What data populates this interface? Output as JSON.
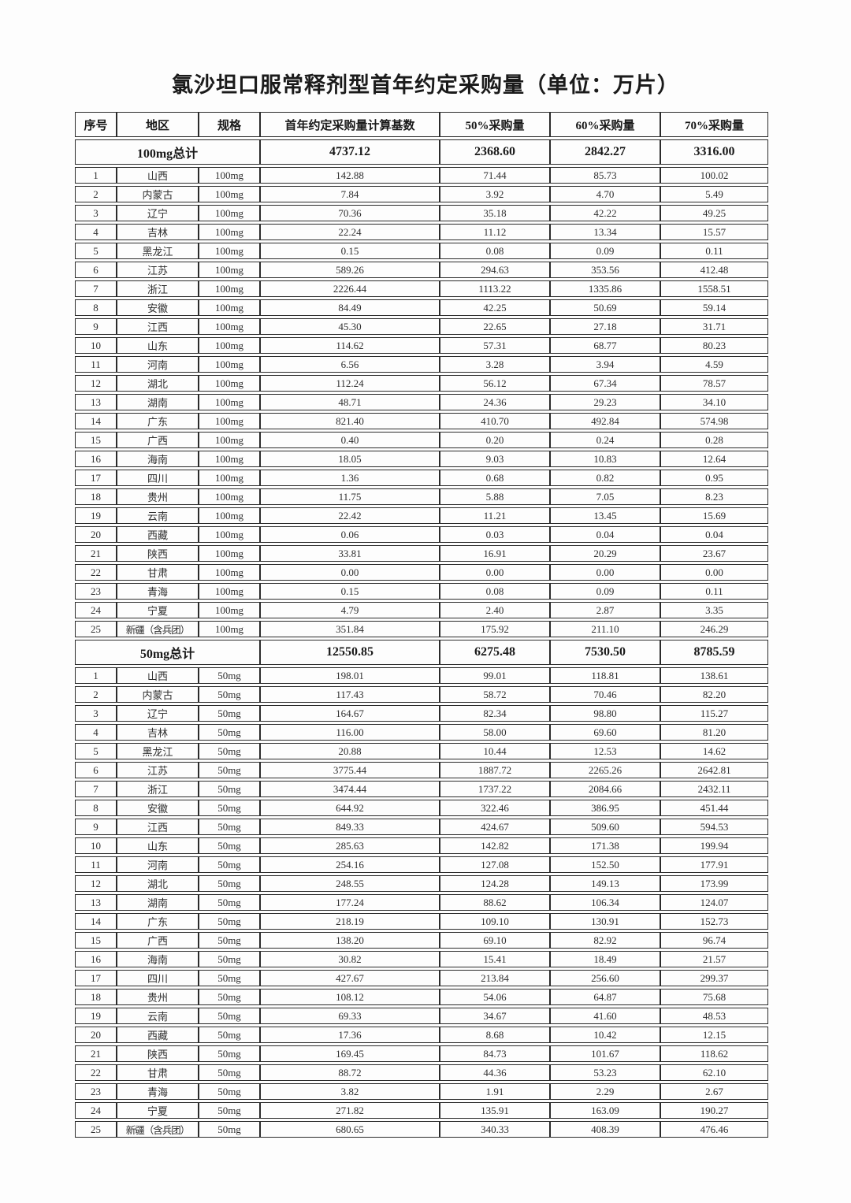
{
  "title": "氯沙坦口服常释剂型首年约定采购量（单位：万片）",
  "table": {
    "columns": [
      "序号",
      "地区",
      "规格",
      "首年约定采购量计算基数",
      "50%采购量",
      "60%采购量",
      "70%采购量"
    ],
    "sections": [
      {
        "summary_label": "100mg总计",
        "summary_values": [
          "4737.12",
          "2368.60",
          "2842.27",
          "3316.00"
        ],
        "rows": [
          [
            "1",
            "山西",
            "100mg",
            "142.88",
            "71.44",
            "85.73",
            "100.02"
          ],
          [
            "2",
            "内蒙古",
            "100mg",
            "7.84",
            "3.92",
            "4.70",
            "5.49"
          ],
          [
            "3",
            "辽宁",
            "100mg",
            "70.36",
            "35.18",
            "42.22",
            "49.25"
          ],
          [
            "4",
            "吉林",
            "100mg",
            "22.24",
            "11.12",
            "13.34",
            "15.57"
          ],
          [
            "5",
            "黑龙江",
            "100mg",
            "0.15",
            "0.08",
            "0.09",
            "0.11"
          ],
          [
            "6",
            "江苏",
            "100mg",
            "589.26",
            "294.63",
            "353.56",
            "412.48"
          ],
          [
            "7",
            "浙江",
            "100mg",
            "2226.44",
            "1113.22",
            "1335.86",
            "1558.51"
          ],
          [
            "8",
            "安徽",
            "100mg",
            "84.49",
            "42.25",
            "50.69",
            "59.14"
          ],
          [
            "9",
            "江西",
            "100mg",
            "45.30",
            "22.65",
            "27.18",
            "31.71"
          ],
          [
            "10",
            "山东",
            "100mg",
            "114.62",
            "57.31",
            "68.77",
            "80.23"
          ],
          [
            "11",
            "河南",
            "100mg",
            "6.56",
            "3.28",
            "3.94",
            "4.59"
          ],
          [
            "12",
            "湖北",
            "100mg",
            "112.24",
            "56.12",
            "67.34",
            "78.57"
          ],
          [
            "13",
            "湖南",
            "100mg",
            "48.71",
            "24.36",
            "29.23",
            "34.10"
          ],
          [
            "14",
            "广东",
            "100mg",
            "821.40",
            "410.70",
            "492.84",
            "574.98"
          ],
          [
            "15",
            "广西",
            "100mg",
            "0.40",
            "0.20",
            "0.24",
            "0.28"
          ],
          [
            "16",
            "海南",
            "100mg",
            "18.05",
            "9.03",
            "10.83",
            "12.64"
          ],
          [
            "17",
            "四川",
            "100mg",
            "1.36",
            "0.68",
            "0.82",
            "0.95"
          ],
          [
            "18",
            "贵州",
            "100mg",
            "11.75",
            "5.88",
            "7.05",
            "8.23"
          ],
          [
            "19",
            "云南",
            "100mg",
            "22.42",
            "11.21",
            "13.45",
            "15.69"
          ],
          [
            "20",
            "西藏",
            "100mg",
            "0.06",
            "0.03",
            "0.04",
            "0.04"
          ],
          [
            "21",
            "陕西",
            "100mg",
            "33.81",
            "16.91",
            "20.29",
            "23.67"
          ],
          [
            "22",
            "甘肃",
            "100mg",
            "0.00",
            "0.00",
            "0.00",
            "0.00"
          ],
          [
            "23",
            "青海",
            "100mg",
            "0.15",
            "0.08",
            "0.09",
            "0.11"
          ],
          [
            "24",
            "宁夏",
            "100mg",
            "4.79",
            "2.40",
            "2.87",
            "3.35"
          ],
          [
            "25",
            "新疆（含兵团）",
            "100mg",
            "351.84",
            "175.92",
            "211.10",
            "246.29"
          ]
        ]
      },
      {
        "summary_label": "50mg总计",
        "summary_values": [
          "12550.85",
          "6275.48",
          "7530.50",
          "8785.59"
        ],
        "rows": [
          [
            "1",
            "山西",
            "50mg",
            "198.01",
            "99.01",
            "118.81",
            "138.61"
          ],
          [
            "2",
            "内蒙古",
            "50mg",
            "117.43",
            "58.72",
            "70.46",
            "82.20"
          ],
          [
            "3",
            "辽宁",
            "50mg",
            "164.67",
            "82.34",
            "98.80",
            "115.27"
          ],
          [
            "4",
            "吉林",
            "50mg",
            "116.00",
            "58.00",
            "69.60",
            "81.20"
          ],
          [
            "5",
            "黑龙江",
            "50mg",
            "20.88",
            "10.44",
            "12.53",
            "14.62"
          ],
          [
            "6",
            "江苏",
            "50mg",
            "3775.44",
            "1887.72",
            "2265.26",
            "2642.81"
          ],
          [
            "7",
            "浙江",
            "50mg",
            "3474.44",
            "1737.22",
            "2084.66",
            "2432.11"
          ],
          [
            "8",
            "安徽",
            "50mg",
            "644.92",
            "322.46",
            "386.95",
            "451.44"
          ],
          [
            "9",
            "江西",
            "50mg",
            "849.33",
            "424.67",
            "509.60",
            "594.53"
          ],
          [
            "10",
            "山东",
            "50mg",
            "285.63",
            "142.82",
            "171.38",
            "199.94"
          ],
          [
            "11",
            "河南",
            "50mg",
            "254.16",
            "127.08",
            "152.50",
            "177.91"
          ],
          [
            "12",
            "湖北",
            "50mg",
            "248.55",
            "124.28",
            "149.13",
            "173.99"
          ],
          [
            "13",
            "湖南",
            "50mg",
            "177.24",
            "88.62",
            "106.34",
            "124.07"
          ],
          [
            "14",
            "广东",
            "50mg",
            "218.19",
            "109.10",
            "130.91",
            "152.73"
          ],
          [
            "15",
            "广西",
            "50mg",
            "138.20",
            "69.10",
            "82.92",
            "96.74"
          ],
          [
            "16",
            "海南",
            "50mg",
            "30.82",
            "15.41",
            "18.49",
            "21.57"
          ],
          [
            "17",
            "四川",
            "50mg",
            "427.67",
            "213.84",
            "256.60",
            "299.37"
          ],
          [
            "18",
            "贵州",
            "50mg",
            "108.12",
            "54.06",
            "64.87",
            "75.68"
          ],
          [
            "19",
            "云南",
            "50mg",
            "69.33",
            "34.67",
            "41.60",
            "48.53"
          ],
          [
            "20",
            "西藏",
            "50mg",
            "17.36",
            "8.68",
            "10.42",
            "12.15"
          ],
          [
            "21",
            "陕西",
            "50mg",
            "169.45",
            "84.73",
            "101.67",
            "118.62"
          ],
          [
            "22",
            "甘肃",
            "50mg",
            "88.72",
            "44.36",
            "53.23",
            "62.10"
          ],
          [
            "23",
            "青海",
            "50mg",
            "3.82",
            "1.91",
            "2.29",
            "2.67"
          ],
          [
            "24",
            "宁夏",
            "50mg",
            "271.82",
            "135.91",
            "163.09",
            "190.27"
          ],
          [
            "25",
            "新疆（含兵团）",
            "50mg",
            "680.65",
            "340.33",
            "408.39",
            "476.46"
          ]
        ]
      }
    ]
  }
}
